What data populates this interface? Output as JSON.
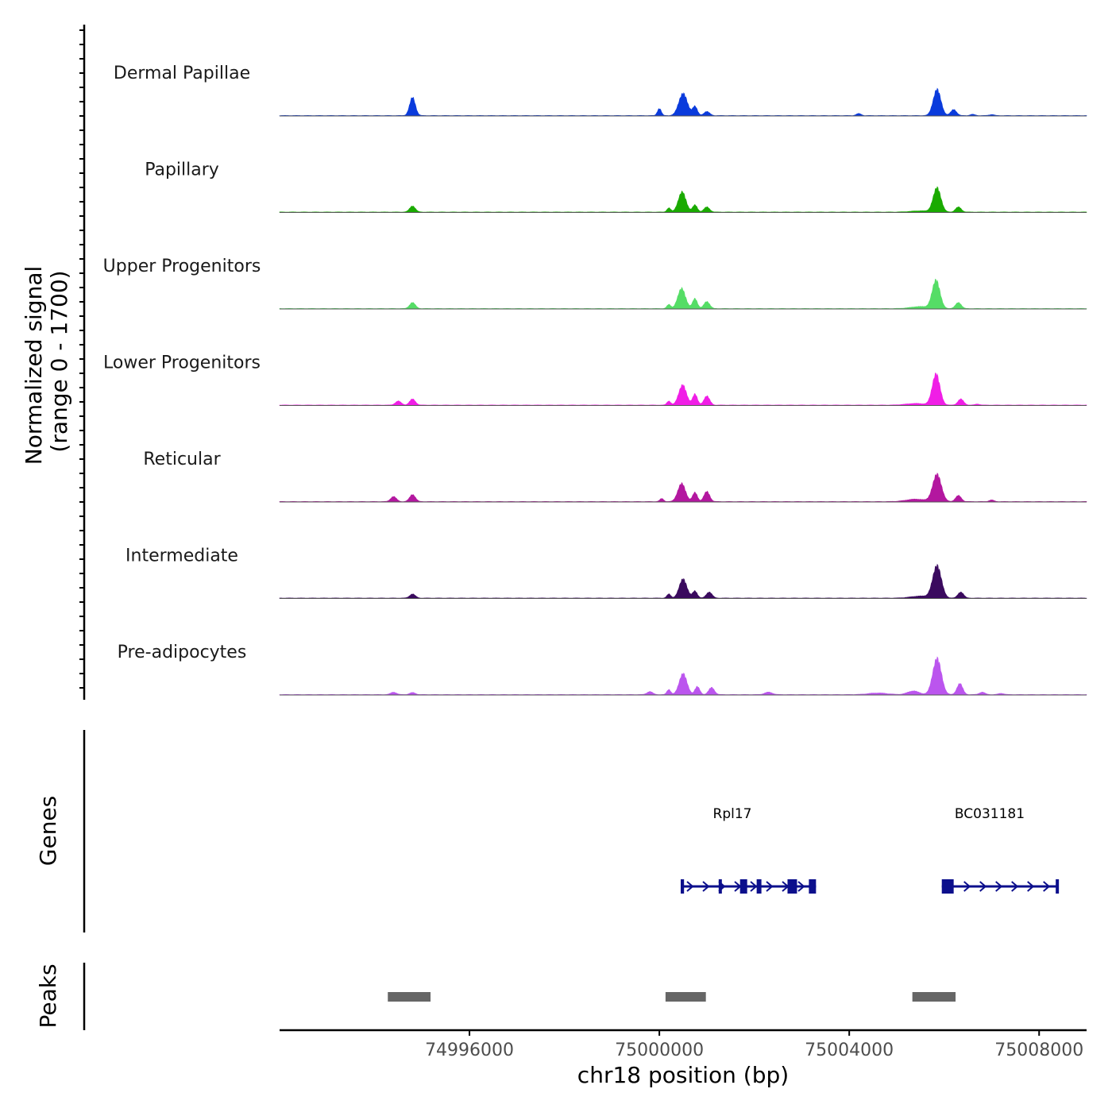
{
  "chart_data": {
    "type": "area",
    "chromosome": "chr18",
    "xlabel": "chr18 position (bp)",
    "x_range": [
      74992000,
      75009000
    ],
    "x_ticks": [
      74996000,
      75000000,
      75004000,
      75008000
    ],
    "x_tick_labels": [
      "74996000",
      "75000000",
      "75004000",
      "75008000"
    ],
    "ylabel_line1": "Normalized signal",
    "ylabel_line2": "(range 0 - 1700)",
    "y_range": [
      0,
      1700
    ],
    "genes_axis_label": "Genes",
    "peaks_axis_label": "Peaks",
    "series": [
      {
        "name": "Dermal Papillae",
        "color": "#0a3bdc",
        "peaks": [
          [
            74994800,
            60,
            0.9
          ],
          [
            75000000,
            40,
            0.35
          ],
          [
            75000500,
            90,
            1.1
          ],
          [
            75000750,
            50,
            0.45
          ],
          [
            75001000,
            60,
            0.2
          ],
          [
            75004200,
            50,
            0.1
          ],
          [
            75005850,
            80,
            1.3
          ],
          [
            75006200,
            60,
            0.3
          ],
          [
            75006600,
            50,
            0.06
          ],
          [
            75007000,
            50,
            0.05
          ]
        ]
      },
      {
        "name": "Papillary",
        "color": "#1aaa00",
        "peaks": [
          [
            74994800,
            60,
            0.3
          ],
          [
            75000200,
            40,
            0.2
          ],
          [
            75000480,
            80,
            1.0
          ],
          [
            75000750,
            50,
            0.35
          ],
          [
            75001000,
            60,
            0.25
          ],
          [
            75005850,
            80,
            1.2
          ],
          [
            75006300,
            60,
            0.25
          ],
          [
            75005500,
            200,
            0.06
          ]
        ]
      },
      {
        "name": "Upper Progenitors",
        "color": "#55dd66",
        "peaks": [
          [
            74994800,
            60,
            0.3
          ],
          [
            75000200,
            40,
            0.2
          ],
          [
            75000470,
            80,
            1.0
          ],
          [
            75000750,
            50,
            0.5
          ],
          [
            75001000,
            60,
            0.35
          ],
          [
            75005830,
            80,
            1.4
          ],
          [
            75006300,
            60,
            0.3
          ],
          [
            75005500,
            200,
            0.1
          ]
        ]
      },
      {
        "name": "Lower Progenitors",
        "color": "#f01ee6",
        "peaks": [
          [
            74994500,
            60,
            0.2
          ],
          [
            74994800,
            60,
            0.3
          ],
          [
            75000200,
            40,
            0.2
          ],
          [
            75000490,
            80,
            1.0
          ],
          [
            75000750,
            50,
            0.55
          ],
          [
            75001000,
            60,
            0.45
          ],
          [
            75005830,
            80,
            1.55
          ],
          [
            75006350,
            60,
            0.3
          ],
          [
            75005400,
            200,
            0.08
          ],
          [
            75006700,
            50,
            0.05
          ]
        ]
      },
      {
        "name": "Reticular",
        "color": "#b3179f",
        "peaks": [
          [
            74994400,
            60,
            0.25
          ],
          [
            74994800,
            60,
            0.35
          ],
          [
            75000050,
            40,
            0.15
          ],
          [
            75000470,
            80,
            0.9
          ],
          [
            75000750,
            50,
            0.45
          ],
          [
            75001000,
            60,
            0.5
          ],
          [
            75005850,
            90,
            1.35
          ],
          [
            75006300,
            60,
            0.3
          ],
          [
            75005400,
            200,
            0.12
          ],
          [
            75007000,
            50,
            0.08
          ]
        ]
      },
      {
        "name": "Intermediate",
        "color": "#3a0a5e",
        "peaks": [
          [
            74994800,
            60,
            0.2
          ],
          [
            75000200,
            40,
            0.2
          ],
          [
            75000500,
            80,
            0.95
          ],
          [
            75000750,
            50,
            0.35
          ],
          [
            75001050,
            60,
            0.3
          ],
          [
            75005850,
            90,
            1.6
          ],
          [
            75006350,
            60,
            0.3
          ],
          [
            75005500,
            200,
            0.1
          ]
        ]
      },
      {
        "name": "Pre-adipocytes",
        "color": "#bb55ee",
        "peaks": [
          [
            74994400,
            60,
            0.12
          ],
          [
            74994800,
            60,
            0.1
          ],
          [
            74999800,
            60,
            0.15
          ],
          [
            75000200,
            40,
            0.25
          ],
          [
            75000500,
            80,
            1.05
          ],
          [
            75000800,
            50,
            0.4
          ],
          [
            75001100,
            60,
            0.35
          ],
          [
            75002300,
            80,
            0.12
          ],
          [
            75004600,
            200,
            0.08
          ],
          [
            75005350,
            120,
            0.18
          ],
          [
            75005850,
            90,
            1.8
          ],
          [
            75006330,
            60,
            0.55
          ],
          [
            75006800,
            60,
            0.12
          ],
          [
            75007200,
            60,
            0.06
          ]
        ]
      }
    ],
    "genes": [
      {
        "name": "Rpl17",
        "start": 75000450,
        "end": 75003300,
        "strand": "+",
        "exons": [
          [
            75000450,
            75000520
          ],
          [
            75001250,
            75001300
          ],
          [
            75001700,
            75001850
          ],
          [
            75002050,
            75002150
          ],
          [
            75002700,
            75002900
          ],
          [
            75003150,
            75003300
          ]
        ]
      },
      {
        "name": "BC031181",
        "start": 75005950,
        "end": 75008400,
        "strand": "+",
        "exons": [
          [
            75005950,
            75006200
          ],
          [
            75008350,
            75008400
          ]
        ]
      }
    ],
    "peaks": [
      [
        74994280,
        74995180
      ],
      [
        75000130,
        75000980
      ],
      [
        75005330,
        75006240
      ]
    ]
  }
}
